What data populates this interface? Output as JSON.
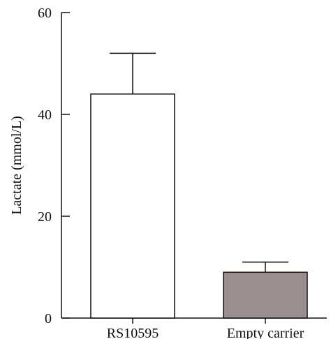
{
  "chart_data": {
    "type": "bar",
    "title": "",
    "xlabel": "",
    "ylabel": "Lactate (mmol/L)",
    "ylim": [
      0,
      60
    ],
    "yticks": [
      0,
      20,
      40,
      60
    ],
    "grid": false,
    "categories": [
      "RS10595",
      "Empty carrier"
    ],
    "values": [
      44,
      9
    ],
    "error_upper": [
      52,
      11
    ],
    "bar_colors": [
      "#ffffff",
      "#9b8e8e"
    ],
    "bar_outline": "#111111",
    "axis_color": "#111111"
  }
}
